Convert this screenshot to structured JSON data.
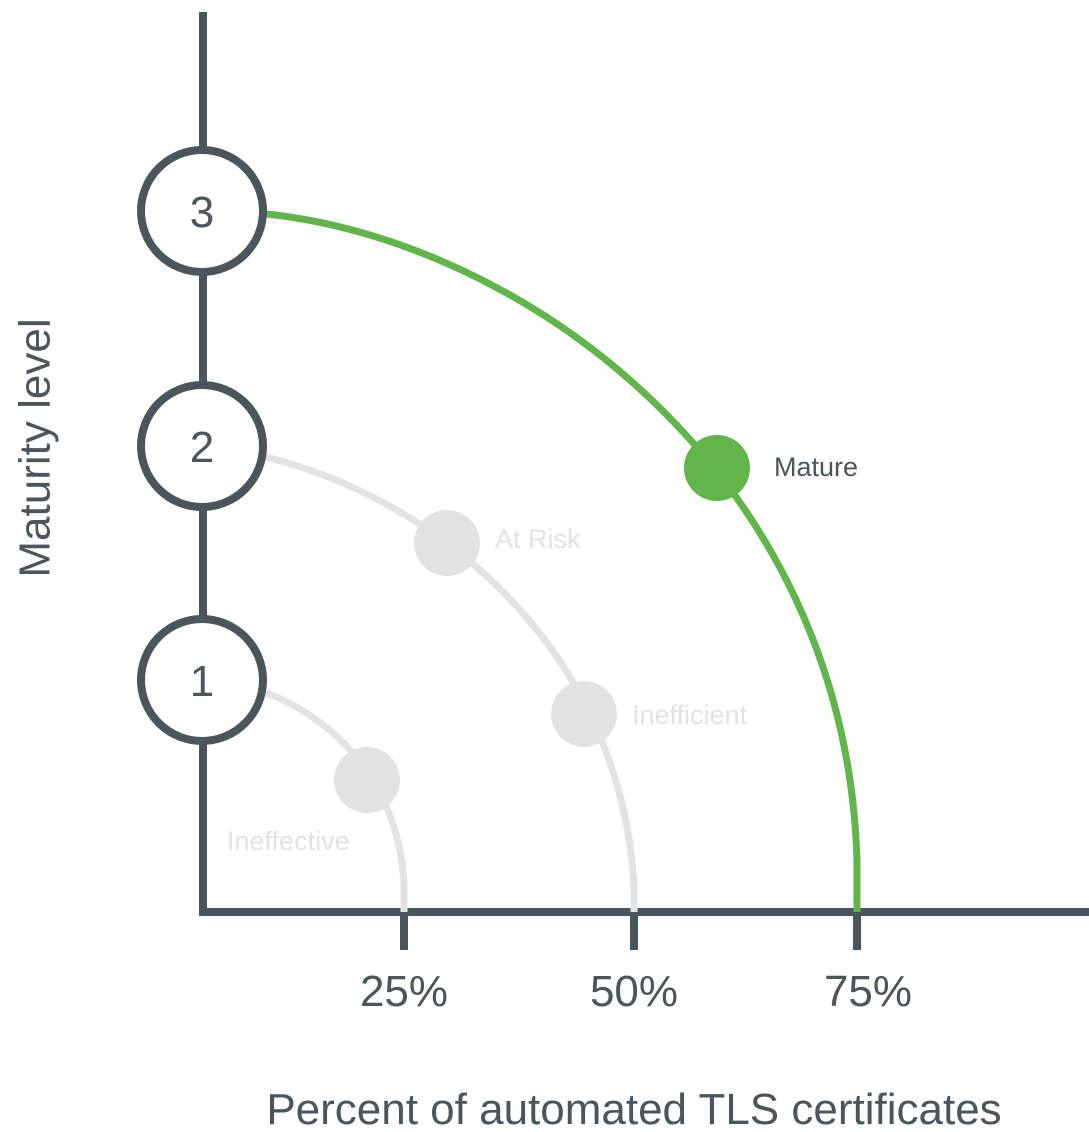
{
  "diagram": {
    "y_axis_title": "Maturity level",
    "x_axis_title": "Percent of automated TLS certificates",
    "levels": [
      "1",
      "2",
      "3"
    ],
    "x_ticks": [
      "25%",
      "50%",
      "75%"
    ],
    "stages": [
      {
        "label": "Ineffective",
        "state": "inactive"
      },
      {
        "label": "At Risk",
        "state": "inactive"
      },
      {
        "label": "Inefficient",
        "state": "inactive"
      },
      {
        "label": "Mature",
        "state": "active"
      }
    ],
    "colors": {
      "axis": "#4a555c",
      "active": "#62b54a",
      "inactive": "#e3e3e3",
      "text": "#4a555c"
    }
  }
}
